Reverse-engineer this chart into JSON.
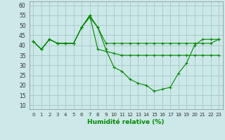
{
  "xlabel": "Humidité relative (%)",
  "background_color": "#cce8e8",
  "grid_color": "#aacccc",
  "line_color": "#008800",
  "x": [
    0,
    1,
    2,
    3,
    4,
    5,
    6,
    7,
    8,
    9,
    10,
    11,
    12,
    13,
    14,
    15,
    16,
    17,
    18,
    19,
    20,
    21,
    22,
    23
  ],
  "line1": [
    42,
    38,
    43,
    41,
    41,
    41,
    49,
    54,
    49,
    41,
    41,
    41,
    41,
    41,
    41,
    41,
    41,
    41,
    41,
    41,
    41,
    41,
    41,
    43
  ],
  "line2": [
    42,
    38,
    43,
    41,
    41,
    41,
    49,
    55,
    49,
    38,
    29,
    27,
    23,
    21,
    20,
    17,
    18,
    19,
    26,
    31,
    40,
    43,
    43,
    43
  ],
  "line3": [
    42,
    38,
    43,
    41,
    41,
    41,
    49,
    55,
    38,
    37,
    36,
    35,
    35,
    35,
    35,
    35,
    35,
    35,
    35,
    35,
    35,
    35,
    35,
    35
  ],
  "ylim": [
    8,
    62
  ],
  "xlim": [
    -0.5,
    23.5
  ],
  "yticks": [
    10,
    15,
    20,
    25,
    30,
    35,
    40,
    45,
    50,
    55,
    60
  ],
  "xticks": [
    0,
    1,
    2,
    3,
    4,
    5,
    6,
    7,
    8,
    9,
    10,
    11,
    12,
    13,
    14,
    15,
    16,
    17,
    18,
    19,
    20,
    21,
    22,
    23
  ]
}
